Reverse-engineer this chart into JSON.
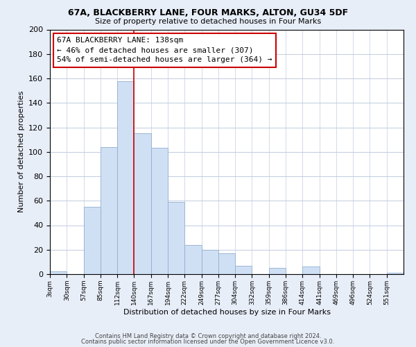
{
  "title": "67A, BLACKBERRY LANE, FOUR MARKS, ALTON, GU34 5DF",
  "subtitle": "Size of property relative to detached houses in Four Marks",
  "xlabel": "Distribution of detached houses by size in Four Marks",
  "ylabel": "Number of detached properties",
  "bar_color": "#d0e0f4",
  "bar_edge_color": "#90aed0",
  "bin_labels": [
    "3sqm",
    "30sqm",
    "57sqm",
    "85sqm",
    "112sqm",
    "140sqm",
    "167sqm",
    "194sqm",
    "222sqm",
    "249sqm",
    "277sqm",
    "304sqm",
    "332sqm",
    "359sqm",
    "386sqm",
    "414sqm",
    "441sqm",
    "469sqm",
    "496sqm",
    "524sqm",
    "551sqm"
  ],
  "bar_heights": [
    2,
    0,
    55,
    104,
    158,
    115,
    103,
    59,
    24,
    20,
    17,
    7,
    0,
    5,
    0,
    6,
    0,
    0,
    0,
    0,
    1
  ],
  "ylim": [
    0,
    200
  ],
  "yticks": [
    0,
    20,
    40,
    60,
    80,
    100,
    120,
    140,
    160,
    180,
    200
  ],
  "vline_x_index": 5,
  "vline_color": "#cc0000",
  "annotation_text": "67A BLACKBERRY LANE: 138sqm\n← 46% of detached houses are smaller (307)\n54% of semi-detached houses are larger (364) →",
  "annotation_box_color": "#ffffff",
  "annotation_box_edge": "#cc0000",
  "footer1": "Contains HM Land Registry data © Crown copyright and database right 2024.",
  "footer2": "Contains public sector information licensed under the Open Government Licence v3.0.",
  "background_color": "#e8eef8",
  "plot_background": "#ffffff",
  "grid_color": "#c0cce0"
}
